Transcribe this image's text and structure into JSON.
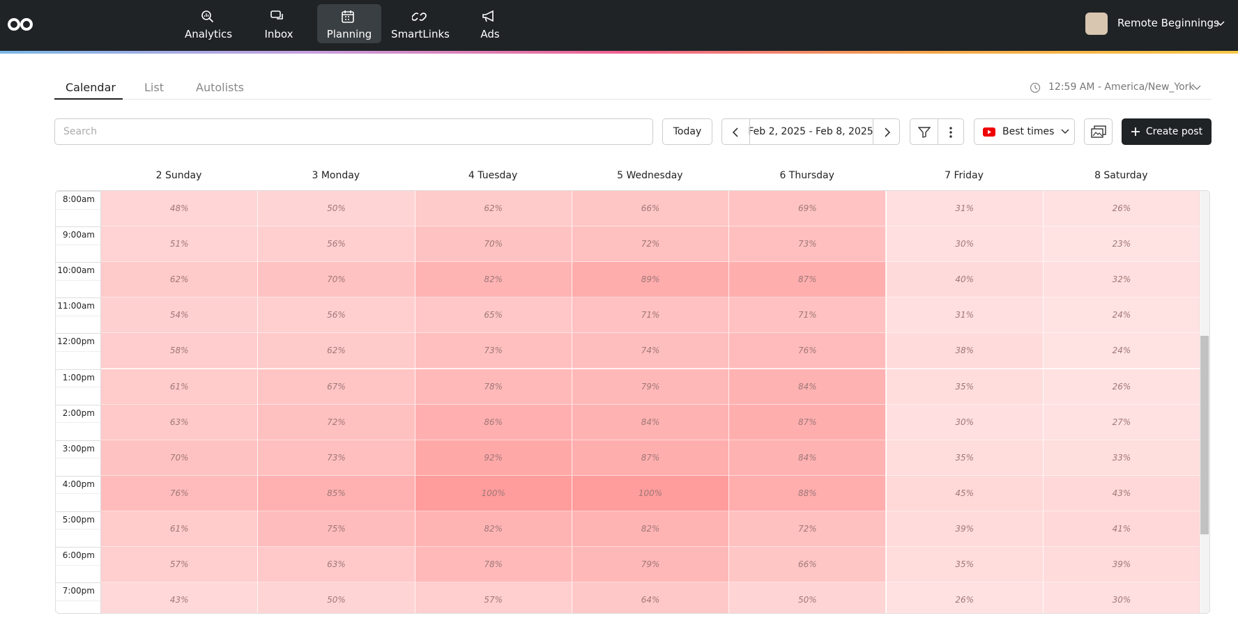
{
  "nav": {
    "items": [
      "Analytics",
      "Inbox",
      "Planning",
      "SmartLinks",
      "Ads"
    ],
    "active": "Planning",
    "user": "Remote Beginnings"
  },
  "tabs": {
    "items": [
      "Calendar",
      "List",
      "Autolists"
    ],
    "active": "Calendar",
    "time": "12:59 AM - America/New_York"
  },
  "toolbar": {
    "search_placeholder": "Search",
    "today": "Today",
    "date_range": "Feb 2, 2025 - Feb 8, 2025",
    "best_times": "Best times",
    "create_post": "Create post"
  },
  "calendar": {
    "days": [
      "2 Sunday",
      "3 Monday",
      "4 Tuesday",
      "5 Wednesday",
      "6 Thursday",
      "7 Friday",
      "8 Saturday"
    ],
    "times": [
      "8:00am",
      "9:00am",
      "10:00am",
      "11:00am",
      "12:00pm",
      "1:00pm",
      "2:00pm",
      "3:00pm",
      "4:00pm",
      "5:00pm",
      "6:00pm",
      "7:00pm"
    ],
    "rows": [
      [
        "48%",
        "50%",
        "62%",
        "66%",
        "69%",
        "31%",
        "26%"
      ],
      [
        "51%",
        "56%",
        "70%",
        "72%",
        "73%",
        "30%",
        "23%"
      ],
      [
        "62%",
        "70%",
        "82%",
        "89%",
        "87%",
        "40%",
        "32%"
      ],
      [
        "54%",
        "56%",
        "65%",
        "71%",
        "71%",
        "31%",
        "24%"
      ],
      [
        "58%",
        "62%",
        "73%",
        "74%",
        "76%",
        "38%",
        "24%"
      ],
      [
        "61%",
        "67%",
        "78%",
        "79%",
        "84%",
        "35%",
        "26%"
      ],
      [
        "63%",
        "72%",
        "86%",
        "84%",
        "87%",
        "30%",
        "27%"
      ],
      [
        "70%",
        "73%",
        "92%",
        "87%",
        "84%",
        "35%",
        "33%"
      ],
      [
        "76%",
        "85%",
        "100%",
        "100%",
        "88%",
        "45%",
        "43%"
      ],
      [
        "61%",
        "75%",
        "82%",
        "82%",
        "72%",
        "39%",
        "41%"
      ],
      [
        "57%",
        "63%",
        "78%",
        "79%",
        "66%",
        "35%",
        "39%"
      ],
      [
        "43%",
        "50%",
        "57%",
        "64%",
        "50%",
        "26%",
        "30%"
      ]
    ]
  }
}
